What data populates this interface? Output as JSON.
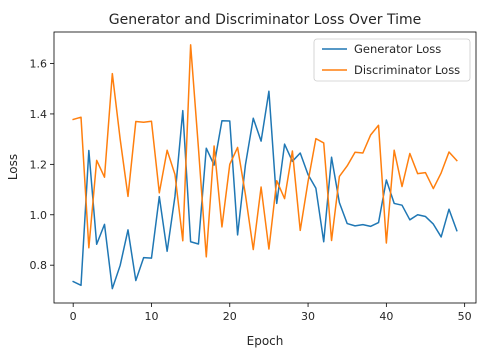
{
  "chart_data": {
    "type": "line",
    "title": "Generator and Discriminator Loss Over Time",
    "xlabel": "Epoch",
    "ylabel": "Loss",
    "xlim": [
      -2.45,
      51.45
    ],
    "ylim": [
      0.65,
      1.725
    ],
    "xticks": [
      0,
      10,
      20,
      30,
      40,
      50
    ],
    "yticks": [
      0.8,
      1.0,
      1.2,
      1.4,
      1.6
    ],
    "xtick_labels": [
      "0",
      "10",
      "20",
      "30",
      "40",
      "50"
    ],
    "ytick_labels": [
      "0.8",
      "1.0",
      "1.2",
      "1.4",
      "1.6"
    ],
    "grid": false,
    "legend_position": "top-right",
    "x": [
      0,
      1,
      2,
      3,
      4,
      5,
      6,
      7,
      8,
      9,
      10,
      11,
      12,
      13,
      14,
      15,
      16,
      17,
      18,
      19,
      20,
      21,
      22,
      23,
      24,
      25,
      26,
      27,
      28,
      29,
      30,
      31,
      32,
      33,
      34,
      35,
      36,
      37,
      38,
      39,
      40,
      41,
      42,
      43,
      44,
      45,
      46,
      47,
      48,
      49
    ],
    "series": [
      {
        "name": "Generator Loss",
        "color": "#1f77b4",
        "values": [
          0.735,
          0.72,
          1.255,
          0.883,
          0.962,
          0.707,
          0.799,
          0.94,
          0.739,
          0.83,
          0.828,
          1.072,
          0.855,
          1.073,
          1.413,
          0.893,
          0.884,
          1.264,
          1.197,
          1.373,
          1.372,
          0.92,
          1.198,
          1.383,
          1.292,
          1.49,
          1.045,
          1.28,
          1.212,
          1.245,
          1.159,
          1.105,
          0.893,
          1.228,
          1.048,
          0.965,
          0.956,
          0.961,
          0.954,
          0.969,
          1.138,
          1.045,
          1.038,
          0.98,
          1.0,
          0.993,
          0.963,
          0.912,
          1.022,
          0.937
        ]
      },
      {
        "name": "Discriminator Loss",
        "color": "#ff7f0e",
        "values": [
          1.378,
          1.387,
          0.869,
          1.216,
          1.149,
          1.56,
          1.3,
          1.073,
          1.37,
          1.367,
          1.371,
          1.087,
          1.256,
          1.16,
          0.897,
          1.674,
          1.264,
          0.833,
          1.273,
          0.952,
          1.2,
          1.267,
          1.08,
          0.862,
          1.11,
          0.864,
          1.135,
          1.064,
          1.253,
          0.938,
          1.132,
          1.302,
          1.285,
          0.898,
          1.152,
          1.194,
          1.248,
          1.245,
          1.317,
          1.355,
          0.888,
          1.256,
          1.112,
          1.243,
          1.163,
          1.167,
          1.104,
          1.166,
          1.249,
          1.215
        ]
      }
    ]
  }
}
